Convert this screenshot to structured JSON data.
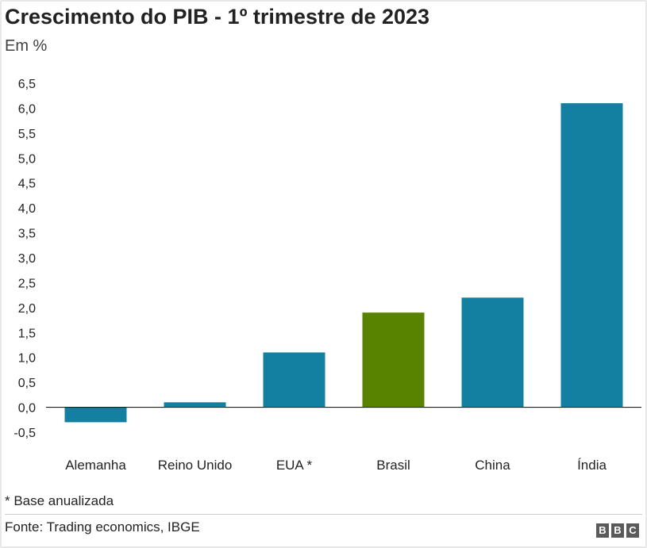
{
  "header": {
    "title": "Crescimento do PIB - 1º trimestre de 2023",
    "subtitle": "Em %"
  },
  "footer": {
    "note": "* Base anualizada",
    "source": "Fonte: Trading economics, IBGE",
    "logo_letters": [
      "B",
      "B",
      "C"
    ]
  },
  "colors": {
    "default_bar": "#1380a1",
    "highlight_bar": "#588300"
  },
  "chart_data": {
    "type": "bar",
    "title": "Crescimento do PIB - 1º trimestre de 2023",
    "subtitle": "Em %",
    "categories": [
      "Alemanha",
      "Reino Unido",
      "EUA *",
      "Brasil",
      "China",
      "Índia"
    ],
    "values": [
      -0.3,
      0.1,
      1.1,
      1.9,
      2.2,
      6.1
    ],
    "highlight": "Brasil",
    "ylim": [
      -0.5,
      6.5
    ],
    "yticks": [
      "6,5",
      "6,0",
      "5,5",
      "5,0",
      "4,5",
      "4,0",
      "3,5",
      "3,0",
      "2,5",
      "2,0",
      "1,5",
      "1,0",
      "0,5",
      "0,0",
      "-0,5"
    ],
    "ytick_values": [
      6.5,
      6.0,
      5.5,
      5.0,
      4.5,
      4.0,
      3.5,
      3.0,
      2.5,
      2.0,
      1.5,
      1.0,
      0.5,
      0.0,
      -0.5
    ],
    "grid": false
  }
}
